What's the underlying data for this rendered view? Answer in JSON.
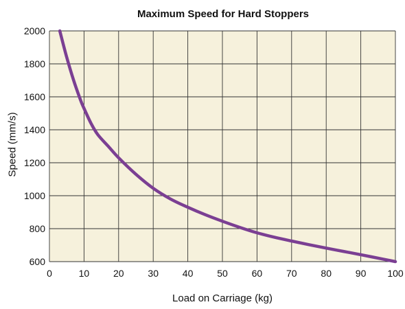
{
  "chart_data": {
    "type": "line",
    "title": "Maximum Speed for Hard Stoppers",
    "xlabel": "Load on Carriage (kg)",
    "ylabel": "Speed (mm/s)",
    "xlim": [
      0,
      100
    ],
    "ylim": [
      600,
      2000
    ],
    "xticks": [
      0,
      10,
      20,
      30,
      40,
      50,
      60,
      70,
      80,
      90,
      100
    ],
    "yticks": [
      600,
      800,
      1000,
      1200,
      1400,
      1600,
      1800,
      2000
    ],
    "grid": true,
    "series": [
      {
        "color": "#7b3f93",
        "x": [
          3,
          5,
          7,
          9,
          10,
          12,
          14,
          17,
          20,
          25,
          30,
          35,
          40,
          45,
          50,
          55,
          60,
          65,
          70,
          75,
          80,
          85,
          90,
          95,
          100
        ],
        "y": [
          2000,
          1840,
          1700,
          1580,
          1530,
          1440,
          1370,
          1300,
          1230,
          1130,
          1045,
          980,
          930,
          885,
          845,
          808,
          775,
          748,
          725,
          703,
          682,
          662,
          642,
          621,
          600
        ]
      }
    ],
    "colors": {
      "plot_background": "#f6f1dc",
      "grid": "#333333"
    }
  }
}
